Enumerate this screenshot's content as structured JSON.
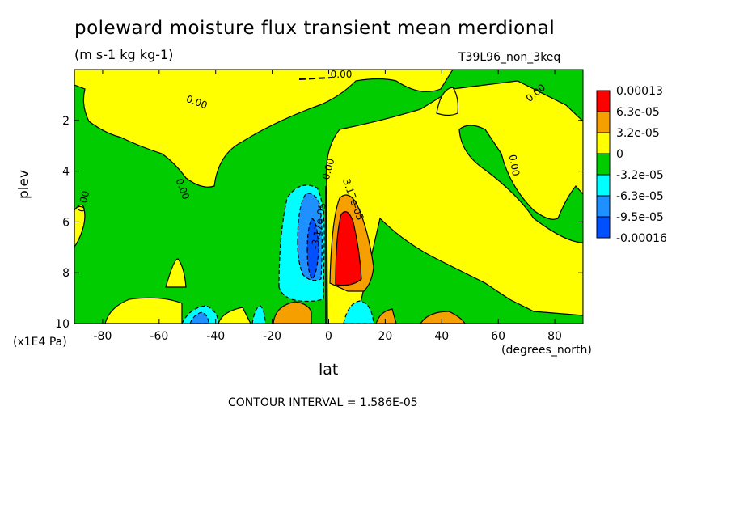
{
  "chart_data": {
    "type": "heatmap",
    "title": "poleward moisture flux transient mean merdional",
    "units": "(m s-1 kg kg-1)",
    "run_label": "T39L96_non_3keq",
    "xlabel": "lat",
    "x_units": "(degrees_north)",
    "ylabel": "plev",
    "y_units": "(x1E4 Pa)",
    "contour_interval": "CONTOUR INTERVAL = 1.586E-05",
    "xlim": [
      -90,
      90
    ],
    "ylim": [
      10,
      0
    ],
    "x_ticks": [
      "-80",
      "-60",
      "-40",
      "-20",
      "0",
      "20",
      "40",
      "60",
      "80"
    ],
    "x_tick_values": [
      -80,
      -60,
      -40,
      -20,
      0,
      20,
      40,
      60,
      80
    ],
    "y_ticks": [
      "2",
      "4",
      "6",
      "8",
      "10"
    ],
    "y_tick_values": [
      2,
      4,
      6,
      8,
      10
    ],
    "contour_labels": [
      "0.00",
      "0.00",
      "0.00",
      "0.00",
      "0.00",
      "0.00",
      "0.00",
      "-3.17e-05",
      "3.17e-05"
    ],
    "legend": {
      "placement": "right",
      "labels": [
        "0.00013",
        "6.3e-05",
        "3.2e-05",
        "0",
        "-3.2e-05",
        "-6.3e-05",
        "-9.5e-05",
        "-0.00016"
      ],
      "colors": [
        "#ff0000",
        "#f5a000",
        "#ffff00",
        "#00cc00",
        "#00ffff",
        "#1e90ff",
        "#0050ff"
      ]
    },
    "features": [
      {
        "lat": -10,
        "plev_min": 4.5,
        "plev_max": 9.0,
        "level": "-9.5e-05"
      },
      {
        "lat": 6,
        "plev_min": 5.0,
        "plev_max": 8.8,
        "level": "0.00013"
      },
      {
        "lat": -50,
        "plev_min": 9.3,
        "plev_max": 10,
        "level": "-6.3e-05"
      },
      {
        "lat": -15,
        "plev_min": 9.0,
        "plev_max": 10,
        "level": "6.3e-05"
      },
      {
        "lat": 12,
        "plev_min": 9.0,
        "plev_max": 10,
        "level": "-6.3e-05"
      },
      {
        "lat": 45,
        "plev_min": 9.5,
        "plev_max": 10,
        "level": "6.3e-05"
      }
    ]
  }
}
